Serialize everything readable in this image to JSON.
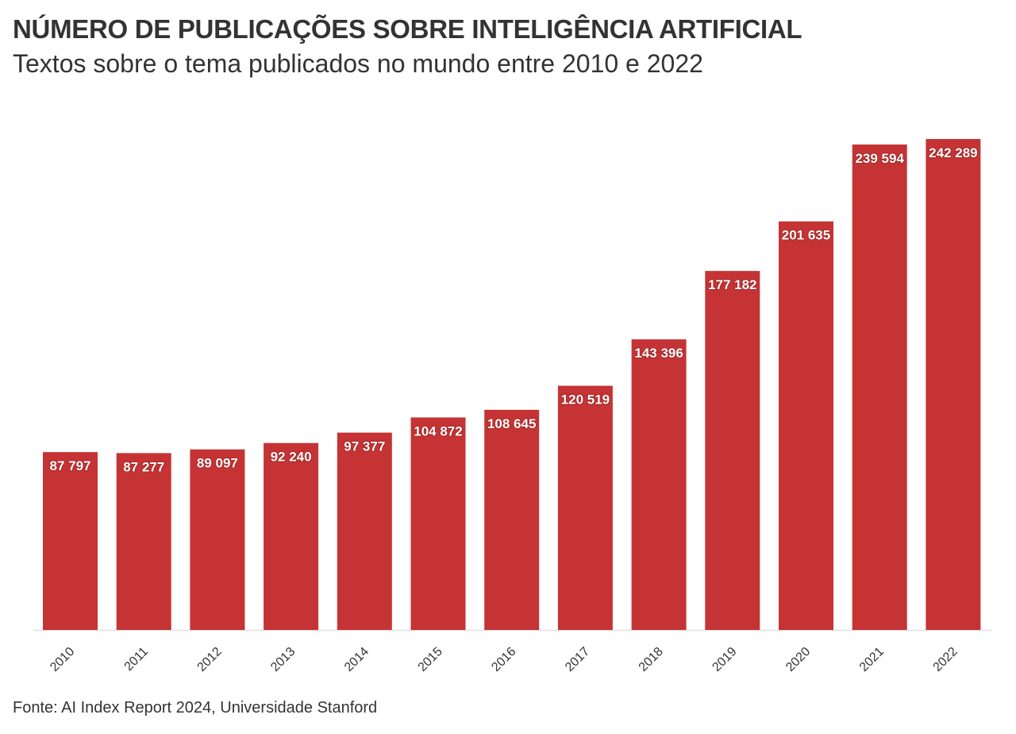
{
  "header": {
    "title": "NÚMERO DE PUBLICAÇÕES SOBRE INTELIGÊNCIA ARTIFICIAL",
    "subtitle": "Textos sobre o tema publicados no mundo entre 2010 e 2022"
  },
  "footer": {
    "source": "Fonte: AI Index Report 2024, Universidade Stanford"
  },
  "colors": {
    "bar": "#c53334",
    "axis": "#e0e0e0"
  },
  "chart_data": {
    "type": "bar",
    "title": "NÚMERO DE PUBLICAÇÕES SOBRE INTELIGÊNCIA ARTIFICIAL",
    "subtitle": "Textos sobre o tema publicados no mundo entre 2010 e 2022",
    "categories": [
      "2010",
      "2011",
      "2012",
      "2013",
      "2014",
      "2015",
      "2016",
      "2017",
      "2018",
      "2019",
      "2020",
      "2021",
      "2022"
    ],
    "values": [
      87797,
      87277,
      89097,
      92240,
      97377,
      104872,
      108645,
      120519,
      143396,
      177182,
      201635,
      239594,
      242289
    ],
    "data_labels": [
      "87 797",
      "87 277",
      "89 097",
      "92 240",
      "97 377",
      "104 872",
      "108 645",
      "120 519",
      "143 396",
      "177 182",
      "201 635",
      "239 594",
      "242 289"
    ],
    "xlabel": "",
    "ylabel": "",
    "ylim": [
      0,
      242289
    ],
    "grid": false,
    "legend": "none"
  }
}
